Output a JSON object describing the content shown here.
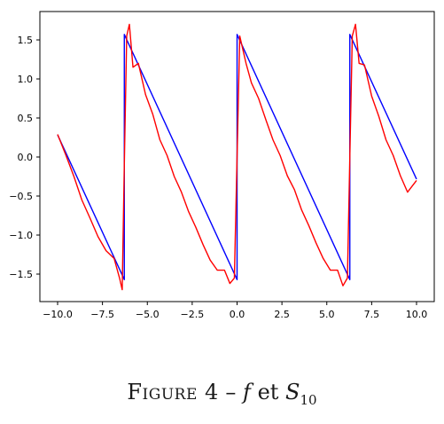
{
  "chart_data": {
    "type": "line",
    "xlim": [
      -10.0,
      10.0
    ],
    "ylim": [
      -1.5,
      1.5
    ],
    "x_ticks": [
      "−10.0",
      "−7.5",
      "−5.0",
      "−2.5",
      "0.0",
      "2.5",
      "5.0",
      "7.5",
      "10.0"
    ],
    "y_ticks": [
      "1.5",
      "1.0",
      "0.5",
      "0.0",
      "−0.5",
      "−1.0",
      "−1.5"
    ],
    "series": [
      {
        "color": "#0000ff",
        "x": [
          -10.0,
          -6.283,
          -6.283,
          0.0,
          0.0,
          6.283,
          6.283,
          10.0
        ],
        "y": [
          0.2832,
          -1.5708,
          1.5708,
          -1.5708,
          1.5708,
          -1.5708,
          1.5708,
          -0.2832
        ]
      },
      {
        "color": "#ff0000",
        "x": [
          -10.0,
          -9.55,
          -9.09,
          -8.65,
          -8.2,
          -7.75,
          -7.3,
          -6.85,
          -6.55,
          -6.4,
          -6.283,
          -6.15,
          -6.0,
          -5.8,
          -5.5,
          -5.1,
          -4.7,
          -4.3,
          -3.9,
          -3.5,
          -3.1,
          -2.7,
          -2.3,
          -1.9,
          -1.5,
          -1.1,
          -0.7,
          -0.4,
          -0.15,
          0.0,
          0.15,
          0.3,
          0.5,
          0.8,
          1.2,
          1.6,
          2.0,
          2.4,
          2.8,
          3.2,
          3.6,
          4.0,
          4.4,
          4.8,
          5.2,
          5.6,
          5.9,
          6.15,
          6.283,
          6.42,
          6.6,
          6.8,
          7.1,
          7.5,
          7.9,
          8.3,
          8.7,
          9.1,
          9.5,
          10.0
        ],
        "y": [
          0.29,
          0.03,
          -0.25,
          -0.55,
          -0.78,
          -1.02,
          -1.2,
          -1.3,
          -1.55,
          -1.7,
          -0.1,
          1.55,
          1.7,
          1.15,
          1.2,
          0.8,
          0.55,
          0.22,
          0.02,
          -0.25,
          -0.45,
          -0.7,
          -0.9,
          -1.12,
          -1.32,
          -1.45,
          -1.45,
          -1.62,
          -1.55,
          0.0,
          1.55,
          1.4,
          1.2,
          0.95,
          0.75,
          0.48,
          0.22,
          0.02,
          -0.24,
          -0.42,
          -0.68,
          -0.88,
          -1.1,
          -1.3,
          -1.45,
          -1.45,
          -1.65,
          -1.55,
          0.0,
          1.55,
          1.7,
          1.2,
          1.18,
          0.78,
          0.52,
          0.22,
          0.02,
          -0.24,
          -0.45,
          -0.3
        ]
      }
    ]
  },
  "caption": {
    "label": "Figure 4",
    "dash": " – ",
    "f": "f",
    "et": " et ",
    "s": "S",
    "sub": "10"
  }
}
